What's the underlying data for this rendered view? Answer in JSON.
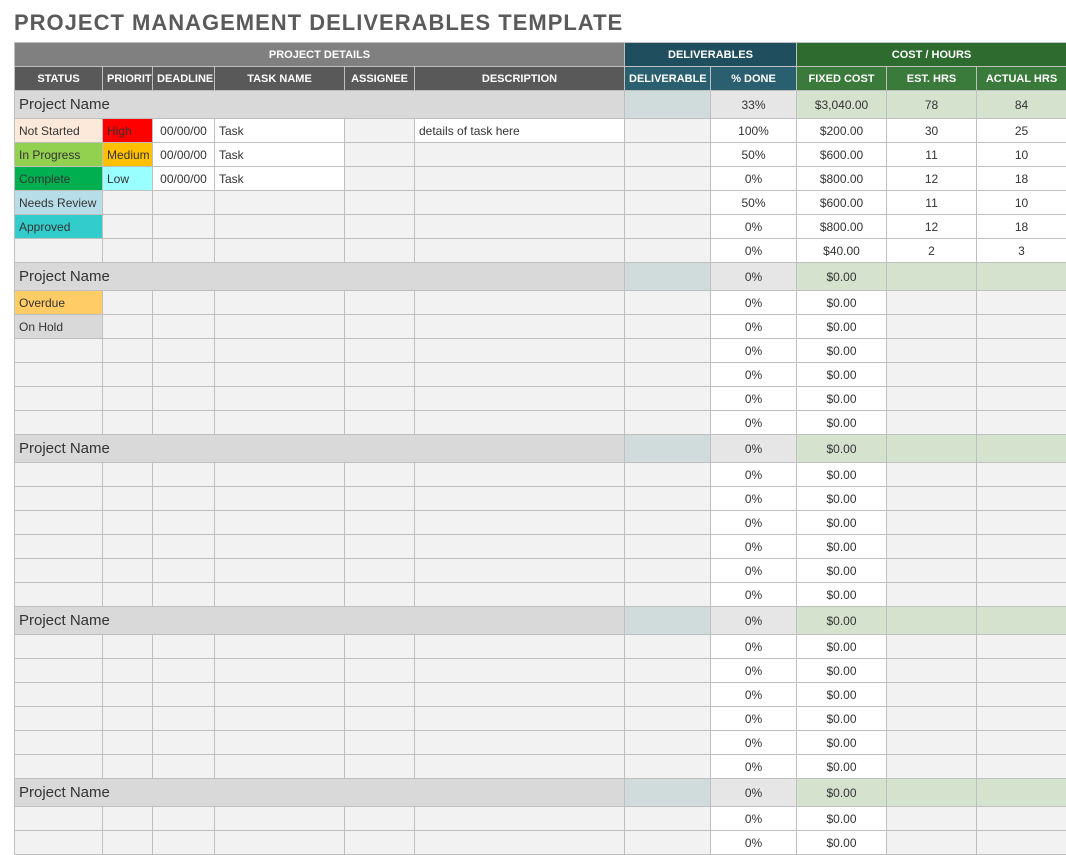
{
  "title": "PROJECT MANAGEMENT DELIVERABLES TEMPLATE",
  "colors": {
    "header_details": "#808080",
    "header_deliv": "#1f4e5f",
    "header_cost": "#2e6b2e",
    "sub_details": "#595959",
    "sub_deliv": "#2a5f6f",
    "sub_cost": "#3a7a3a",
    "section_bg": "#d9d9d9",
    "section_deliv_bg": "#d0dcdb",
    "section_cost_bg": "#d5e3ce",
    "blank_bg": "#f2f2f2",
    "border": "#bfbfbf"
  },
  "status_colors": {
    "Not Started": "#fde9d9",
    "In Progress": "#92d050",
    "Complete": "#00b050",
    "Needs Review": "#b7dee8",
    "Approved": "#33cccc",
    "Overdue": "#ffcc66",
    "On Hold": "#d9d9d9"
  },
  "priority_colors": {
    "High": "#ff0000",
    "Medium": "#ffc000",
    "Low": "#99ffff"
  },
  "group_headers": {
    "details": "PROJECT DETAILS",
    "deliverables": "DELIVERABLES",
    "cost": "COST / HOURS"
  },
  "columns": {
    "status": "STATUS",
    "priority": "PRIORITY",
    "deadline": "DEADLINE",
    "task": "TASK NAME",
    "assignee": "ASSIGNEE",
    "description": "DESCRIPTION",
    "deliverable": "DELIVERABLE",
    "done": "% DONE",
    "fixed": "FIXED COST",
    "esthrs": "EST. HRS",
    "acthrs": "ACTUAL HRS"
  },
  "sections": [
    {
      "name": "Project Name",
      "summary": {
        "done": "33%",
        "fixed": "$3,040.00",
        "esthrs": "78",
        "acthrs": "84"
      },
      "rows": [
        {
          "status": "Not Started",
          "priority": "High",
          "deadline": "00/00/00",
          "task": "Task",
          "assignee": "",
          "description": "details of task here",
          "deliverable": "",
          "done": "100%",
          "fixed": "$200.00",
          "esthrs": "30",
          "acthrs": "25"
        },
        {
          "status": "In Progress",
          "priority": "Medium",
          "deadline": "00/00/00",
          "task": "Task",
          "assignee": "",
          "description": "",
          "deliverable": "",
          "done": "50%",
          "fixed": "$600.00",
          "esthrs": "11",
          "acthrs": "10"
        },
        {
          "status": "Complete",
          "priority": "Low",
          "deadline": "00/00/00",
          "task": "Task",
          "assignee": "",
          "description": "",
          "deliverable": "",
          "done": "0%",
          "fixed": "$800.00",
          "esthrs": "12",
          "acthrs": "18"
        },
        {
          "status": "Needs Review",
          "priority": "",
          "deadline": "",
          "task": "",
          "assignee": "",
          "description": "",
          "deliverable": "",
          "done": "50%",
          "fixed": "$600.00",
          "esthrs": "11",
          "acthrs": "10"
        },
        {
          "status": "Approved",
          "priority": "",
          "deadline": "",
          "task": "",
          "assignee": "",
          "description": "",
          "deliverable": "",
          "done": "0%",
          "fixed": "$800.00",
          "esthrs": "12",
          "acthrs": "18"
        },
        {
          "status": "",
          "priority": "",
          "deadline": "",
          "task": "",
          "assignee": "",
          "description": "",
          "deliverable": "",
          "done": "0%",
          "fixed": "$40.00",
          "esthrs": "2",
          "acthrs": "3"
        }
      ]
    },
    {
      "name": "Project Name",
      "summary": {
        "done": "0%",
        "fixed": "$0.00",
        "esthrs": "",
        "acthrs": ""
      },
      "rows": [
        {
          "status": "Overdue",
          "priority": "",
          "deadline": "",
          "task": "",
          "assignee": "",
          "description": "",
          "deliverable": "",
          "done": "0%",
          "fixed": "$0.00",
          "esthrs": "",
          "acthrs": ""
        },
        {
          "status": "On Hold",
          "priority": "",
          "deadline": "",
          "task": "",
          "assignee": "",
          "description": "",
          "deliverable": "",
          "done": "0%",
          "fixed": "$0.00",
          "esthrs": "",
          "acthrs": ""
        },
        {
          "status": "",
          "priority": "",
          "deadline": "",
          "task": "",
          "assignee": "",
          "description": "",
          "deliverable": "",
          "done": "0%",
          "fixed": "$0.00",
          "esthrs": "",
          "acthrs": ""
        },
        {
          "status": "",
          "priority": "",
          "deadline": "",
          "task": "",
          "assignee": "",
          "description": "",
          "deliverable": "",
          "done": "0%",
          "fixed": "$0.00",
          "esthrs": "",
          "acthrs": ""
        },
        {
          "status": "",
          "priority": "",
          "deadline": "",
          "task": "",
          "assignee": "",
          "description": "",
          "deliverable": "",
          "done": "0%",
          "fixed": "$0.00",
          "esthrs": "",
          "acthrs": ""
        },
        {
          "status": "",
          "priority": "",
          "deadline": "",
          "task": "",
          "assignee": "",
          "description": "",
          "deliverable": "",
          "done": "0%",
          "fixed": "$0.00",
          "esthrs": "",
          "acthrs": ""
        }
      ]
    },
    {
      "name": "Project Name",
      "summary": {
        "done": "0%",
        "fixed": "$0.00",
        "esthrs": "",
        "acthrs": ""
      },
      "rows": [
        {
          "status": "",
          "priority": "",
          "deadline": "",
          "task": "",
          "assignee": "",
          "description": "",
          "deliverable": "",
          "done": "0%",
          "fixed": "$0.00",
          "esthrs": "",
          "acthrs": ""
        },
        {
          "status": "",
          "priority": "",
          "deadline": "",
          "task": "",
          "assignee": "",
          "description": "",
          "deliverable": "",
          "done": "0%",
          "fixed": "$0.00",
          "esthrs": "",
          "acthrs": ""
        },
        {
          "status": "",
          "priority": "",
          "deadline": "",
          "task": "",
          "assignee": "",
          "description": "",
          "deliverable": "",
          "done": "0%",
          "fixed": "$0.00",
          "esthrs": "",
          "acthrs": ""
        },
        {
          "status": "",
          "priority": "",
          "deadline": "",
          "task": "",
          "assignee": "",
          "description": "",
          "deliverable": "",
          "done": "0%",
          "fixed": "$0.00",
          "esthrs": "",
          "acthrs": ""
        },
        {
          "status": "",
          "priority": "",
          "deadline": "",
          "task": "",
          "assignee": "",
          "description": "",
          "deliverable": "",
          "done": "0%",
          "fixed": "$0.00",
          "esthrs": "",
          "acthrs": ""
        },
        {
          "status": "",
          "priority": "",
          "deadline": "",
          "task": "",
          "assignee": "",
          "description": "",
          "deliverable": "",
          "done": "0%",
          "fixed": "$0.00",
          "esthrs": "",
          "acthrs": ""
        }
      ]
    },
    {
      "name": "Project Name",
      "summary": {
        "done": "0%",
        "fixed": "$0.00",
        "esthrs": "",
        "acthrs": ""
      },
      "rows": [
        {
          "status": "",
          "priority": "",
          "deadline": "",
          "task": "",
          "assignee": "",
          "description": "",
          "deliverable": "",
          "done": "0%",
          "fixed": "$0.00",
          "esthrs": "",
          "acthrs": ""
        },
        {
          "status": "",
          "priority": "",
          "deadline": "",
          "task": "",
          "assignee": "",
          "description": "",
          "deliverable": "",
          "done": "0%",
          "fixed": "$0.00",
          "esthrs": "",
          "acthrs": ""
        },
        {
          "status": "",
          "priority": "",
          "deadline": "",
          "task": "",
          "assignee": "",
          "description": "",
          "deliverable": "",
          "done": "0%",
          "fixed": "$0.00",
          "esthrs": "",
          "acthrs": ""
        },
        {
          "status": "",
          "priority": "",
          "deadline": "",
          "task": "",
          "assignee": "",
          "description": "",
          "deliverable": "",
          "done": "0%",
          "fixed": "$0.00",
          "esthrs": "",
          "acthrs": ""
        },
        {
          "status": "",
          "priority": "",
          "deadline": "",
          "task": "",
          "assignee": "",
          "description": "",
          "deliverable": "",
          "done": "0%",
          "fixed": "$0.00",
          "esthrs": "",
          "acthrs": ""
        },
        {
          "status": "",
          "priority": "",
          "deadline": "",
          "task": "",
          "assignee": "",
          "description": "",
          "deliverable": "",
          "done": "0%",
          "fixed": "$0.00",
          "esthrs": "",
          "acthrs": ""
        }
      ]
    },
    {
      "name": "Project Name",
      "summary": {
        "done": "0%",
        "fixed": "$0.00",
        "esthrs": "",
        "acthrs": ""
      },
      "rows": [
        {
          "status": "",
          "priority": "",
          "deadline": "",
          "task": "",
          "assignee": "",
          "description": "",
          "deliverable": "",
          "done": "0%",
          "fixed": "$0.00",
          "esthrs": "",
          "acthrs": ""
        },
        {
          "status": "",
          "priority": "",
          "deadline": "",
          "task": "",
          "assignee": "",
          "description": "",
          "deliverable": "",
          "done": "0%",
          "fixed": "$0.00",
          "esthrs": "",
          "acthrs": ""
        }
      ]
    }
  ]
}
